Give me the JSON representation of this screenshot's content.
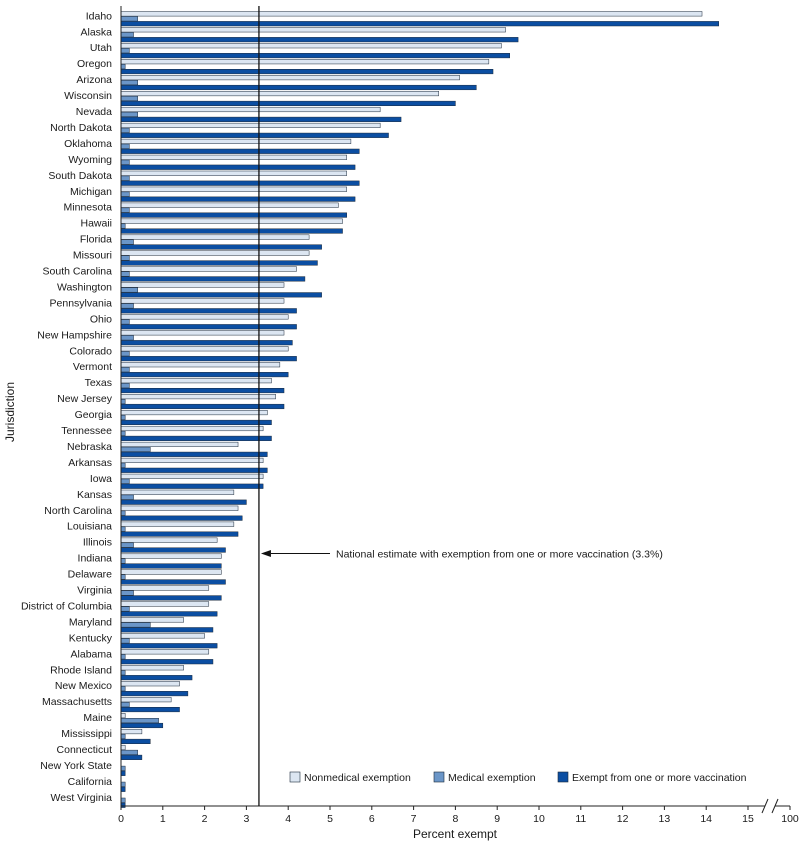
{
  "chart_data": {
    "type": "bar",
    "orientation": "horizontal",
    "categories": [
      "Idaho",
      "Alaska",
      "Utah",
      "Oregon",
      "Arizona",
      "Wisconsin",
      "Nevada",
      "North Dakota",
      "Oklahoma",
      "Wyoming",
      "South Dakota",
      "Michigan",
      "Minnesota",
      "Hawaii",
      "Florida",
      "Missouri",
      "South Carolina",
      "Washington",
      "Pennsylvania",
      "Ohio",
      "New Hampshire",
      "Colorado",
      "Vermont",
      "Texas",
      "New Jersey",
      "Georgia",
      "Tennessee",
      "Nebraska",
      "Arkansas",
      "Iowa",
      "Kansas",
      "North Carolina",
      "Louisiana",
      "Illinois",
      "Indiana",
      "Delaware",
      "Virginia",
      "District of Columbia",
      "Maryland",
      "Kentucky",
      "Alabama",
      "Rhode Island",
      "New Mexico",
      "Massachusetts",
      "Maine",
      "Mississippi",
      "Connecticut",
      "New York State",
      "California",
      "West Virginia"
    ],
    "series": [
      {
        "name": "Nonmedical exemption",
        "color": "#dce6f2",
        "values": [
          13.9,
          9.2,
          9.1,
          8.8,
          8.1,
          7.6,
          6.2,
          6.2,
          5.5,
          5.4,
          5.4,
          5.4,
          5.2,
          5.3,
          4.5,
          4.5,
          4.2,
          3.9,
          3.9,
          4.0,
          3.9,
          4.0,
          3.8,
          3.6,
          3.7,
          3.5,
          3.4,
          2.8,
          3.4,
          3.4,
          2.7,
          2.8,
          2.7,
          2.3,
          2.4,
          2.4,
          2.1,
          2.1,
          1.5,
          2.0,
          2.1,
          1.5,
          1.4,
          1.2,
          0.1,
          0.5,
          0.1,
          0.0,
          0.0,
          0.0
        ]
      },
      {
        "name": "Medical exemption",
        "color": "#6b96c8",
        "values": [
          0.4,
          0.3,
          0.2,
          0.1,
          0.4,
          0.4,
          0.4,
          0.2,
          0.2,
          0.2,
          0.2,
          0.2,
          0.2,
          0.1,
          0.3,
          0.2,
          0.2,
          0.4,
          0.3,
          0.2,
          0.3,
          0.2,
          0.2,
          0.2,
          0.1,
          0.1,
          0.1,
          0.7,
          0.1,
          0.2,
          0.3,
          0.1,
          0.1,
          0.3,
          0.1,
          0.1,
          0.3,
          0.2,
          0.7,
          0.2,
          0.1,
          0.1,
          0.1,
          0.2,
          0.9,
          0.1,
          0.4,
          0.1,
          0.1,
          0.1
        ]
      },
      {
        "name": "Exempt from one or more vaccination",
        "color": "#0b4ea2",
        "values": [
          14.3,
          9.5,
          9.3,
          8.9,
          8.5,
          8.0,
          6.7,
          6.4,
          5.7,
          5.6,
          5.7,
          5.6,
          5.4,
          5.3,
          4.8,
          4.7,
          4.4,
          4.8,
          4.2,
          4.2,
          4.1,
          4.2,
          4.0,
          3.9,
          3.9,
          3.6,
          3.6,
          3.5,
          3.5,
          3.4,
          3.0,
          2.9,
          2.8,
          2.5,
          2.4,
          2.5,
          2.4,
          2.3,
          2.2,
          2.3,
          2.2,
          1.7,
          1.6,
          1.4,
          1.0,
          0.7,
          0.5,
          0.1,
          0.1,
          0.1
        ]
      }
    ],
    "xlabel": "Percent exempt",
    "ylabel": "Jurisdiction",
    "xlim": [
      0,
      15
    ],
    "x_ticks": [
      "0",
      "1",
      "2",
      "3",
      "4",
      "5",
      "6",
      "7",
      "8",
      "9",
      "10",
      "11",
      "12",
      "13",
      "14",
      "15",
      "100"
    ],
    "axis_break": "between 15 and 100",
    "reference_line": {
      "value": 3.3,
      "label": "National estimate with exemption from one or more vaccination (3.3%)"
    },
    "legend": {
      "placement": "bottom-right",
      "entries": [
        "Nonmedical exemption",
        "Medical exemption",
        "Exempt from one or more vaccination"
      ]
    },
    "grid": false
  }
}
